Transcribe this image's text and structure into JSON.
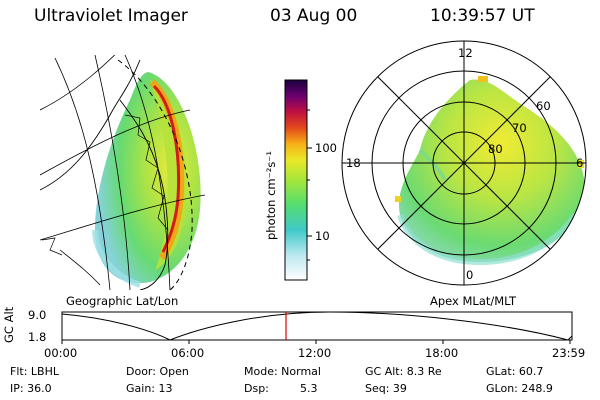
{
  "header": {
    "instrument": "Ultraviolet Imager",
    "date": "03 Aug 00",
    "time": "10:39:57 UT"
  },
  "colorbar": {
    "unit_label": "photon cm⁻²s⁻¹",
    "ticks": [
      "100",
      "10"
    ]
  },
  "panels": {
    "left_caption": "Geographic Lat/Lon",
    "right_caption": "Apex MLat/MLT"
  },
  "polar_plot": {
    "mlt_labels": {
      "top": "12",
      "left": "18",
      "right": "6",
      "bottom": "0"
    },
    "lat_rings": [
      "60",
      "70",
      "80"
    ]
  },
  "timeline": {
    "ylabel": "GC Alt",
    "y_ticks": [
      "9.0",
      "1.8"
    ],
    "x_ticks": [
      "00:00",
      "06:00",
      "12:00",
      "18:00",
      "23:59"
    ],
    "cursor_time": "10:39:57"
  },
  "status": {
    "filter": "Flt: LBHL",
    "door": "Door: Open",
    "mode": "Mode: Normal",
    "gc_alt": "GC Alt: 8.3 Re",
    "glat": "GLat: 60.7",
    "ip": "IP: 36.0",
    "gain": "Gain: 13",
    "dsp_label": "Dsp:",
    "dsp_value": "5.3",
    "seq": "Seq: 39",
    "glon": "GLon: 248.9"
  },
  "colors": {
    "cursor": "#e00000",
    "aurora_palette": [
      "#ffffff",
      "#4fd6d6",
      "#5fe07a",
      "#b8e83a",
      "#f0e020",
      "#f5a010",
      "#e02020",
      "#a00070",
      "#200060"
    ]
  }
}
